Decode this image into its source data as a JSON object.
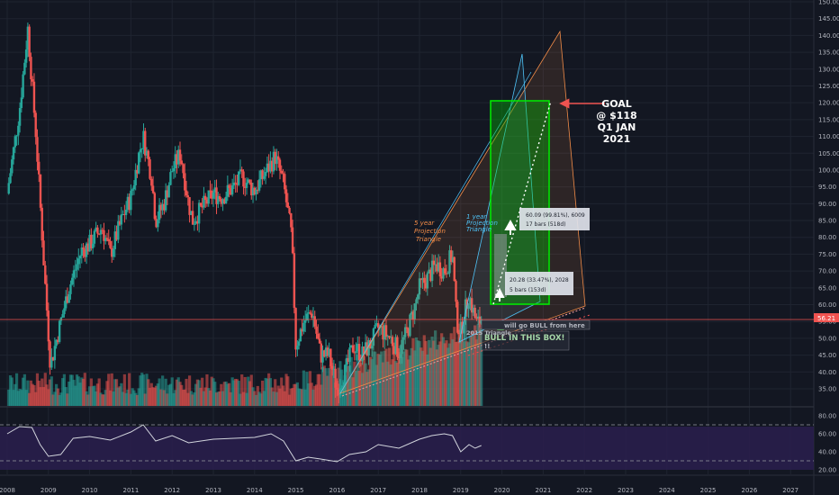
{
  "chart_data": {
    "type": "candlestick",
    "x_axis": {
      "ticks": [
        "2008",
        "2009",
        "2010",
        "2011",
        "2012",
        "2013",
        "2014",
        "2015",
        "2016",
        "2017",
        "2018",
        "2019",
        "2020",
        "2021",
        "2022",
        "2023",
        "2024",
        "2025",
        "2026",
        "2027"
      ]
    },
    "price_axis": {
      "range": [
        30,
        150
      ],
      "ticks": [
        35,
        40,
        45,
        50,
        55,
        60,
        65,
        70,
        75,
        80,
        85,
        90,
        95,
        100,
        105,
        110,
        115,
        120,
        125,
        130,
        135,
        140,
        145,
        150
      ]
    },
    "current_price": "56.21",
    "rsi_axis": {
      "range": [
        20,
        80
      ],
      "ticks": [
        "80.00",
        "60.00",
        "40.00",
        "20.00"
      ],
      "bands": [
        30,
        70
      ]
    },
    "annotations": {
      "goal": [
        "GOAL",
        "@ $118",
        "Q1 JAN",
        "2021"
      ],
      "five_year": [
        "5 year",
        "Projection",
        "Triangle"
      ],
      "one_year": [
        "1 year",
        "Projection",
        "Triangle"
      ],
      "measure_big": [
        "60.09 (99.81%), 6009",
        "17 bars (518d)"
      ],
      "measure_small": [
        "20.28 (33.47%), 2028",
        "5 bars (153d)"
      ],
      "bull_from": "will go BULL from here",
      "bull_box": "BULL IN THIS BOX!",
      "triangle_2015": "2015 Triangle",
      "exclaim": "!!"
    },
    "colors": {
      "up": "#26a69a",
      "down": "#ef5350",
      "bg": "#131722",
      "box": "#00c800",
      "rsi_band": "#7e57c2",
      "five_year": "#f28c48",
      "one_year": "#4fc3f7"
    },
    "price_series": [
      {
        "t": 2008.0,
        "p": 93
      },
      {
        "t": 2008.3,
        "p": 118
      },
      {
        "t": 2008.5,
        "p": 142
      },
      {
        "t": 2008.7,
        "p": 110
      },
      {
        "t": 2008.9,
        "p": 70
      },
      {
        "t": 2009.05,
        "p": 42
      },
      {
        "t": 2009.2,
        "p": 50
      },
      {
        "t": 2009.5,
        "p": 65
      },
      {
        "t": 2009.8,
        "p": 76
      },
      {
        "t": 2010.0,
        "p": 78
      },
      {
        "t": 2010.3,
        "p": 83
      },
      {
        "t": 2010.5,
        "p": 75
      },
      {
        "t": 2010.8,
        "p": 86
      },
      {
        "t": 2011.0,
        "p": 92
      },
      {
        "t": 2011.2,
        "p": 105
      },
      {
        "t": 2011.3,
        "p": 110
      },
      {
        "t": 2011.5,
        "p": 98
      },
      {
        "t": 2011.6,
        "p": 85
      },
      {
        "t": 2011.8,
        "p": 90
      },
      {
        "t": 2012.0,
        "p": 100
      },
      {
        "t": 2012.2,
        "p": 105
      },
      {
        "t": 2012.4,
        "p": 90
      },
      {
        "t": 2012.5,
        "p": 85
      },
      {
        "t": 2012.8,
        "p": 90
      },
      {
        "t": 2013.0,
        "p": 93
      },
      {
        "t": 2013.2,
        "p": 92
      },
      {
        "t": 2013.5,
        "p": 95
      },
      {
        "t": 2013.7,
        "p": 98
      },
      {
        "t": 2013.9,
        "p": 95
      },
      {
        "t": 2014.0,
        "p": 94
      },
      {
        "t": 2014.3,
        "p": 100
      },
      {
        "t": 2014.5,
        "p": 104
      },
      {
        "t": 2014.7,
        "p": 96
      },
      {
        "t": 2014.9,
        "p": 80
      },
      {
        "t": 2015.0,
        "p": 48
      },
      {
        "t": 2015.2,
        "p": 55
      },
      {
        "t": 2015.4,
        "p": 58
      },
      {
        "t": 2015.6,
        "p": 45
      },
      {
        "t": 2015.8,
        "p": 45
      },
      {
        "t": 2016.0,
        "p": 35
      },
      {
        "t": 2016.2,
        "p": 40
      },
      {
        "t": 2016.4,
        "p": 48
      },
      {
        "t": 2016.6,
        "p": 45
      },
      {
        "t": 2016.8,
        "p": 48
      },
      {
        "t": 2017.0,
        "p": 53
      },
      {
        "t": 2017.3,
        "p": 50
      },
      {
        "t": 2017.5,
        "p": 46
      },
      {
        "t": 2017.7,
        "p": 52
      },
      {
        "t": 2017.9,
        "p": 60
      },
      {
        "t": 2018.0,
        "p": 65
      },
      {
        "t": 2018.2,
        "p": 68
      },
      {
        "t": 2018.4,
        "p": 72
      },
      {
        "t": 2018.6,
        "p": 70
      },
      {
        "t": 2018.8,
        "p": 75
      },
      {
        "t": 2018.9,
        "p": 55
      },
      {
        "t": 2019.0,
        "p": 52
      },
      {
        "t": 2019.1,
        "p": 58
      },
      {
        "t": 2019.2,
        "p": 63
      },
      {
        "t": 2019.3,
        "p": 58
      },
      {
        "t": 2019.4,
        "p": 54
      },
      {
        "t": 2019.5,
        "p": 56
      }
    ],
    "rsi_series": [
      {
        "t": 2008.0,
        "v": 60
      },
      {
        "t": 2008.3,
        "v": 68
      },
      {
        "t": 2008.6,
        "v": 67
      },
      {
        "t": 2008.8,
        "v": 48
      },
      {
        "t": 2009.0,
        "v": 35
      },
      {
        "t": 2009.3,
        "v": 37
      },
      {
        "t": 2009.6,
        "v": 55
      },
      {
        "t": 2010.0,
        "v": 57
      },
      {
        "t": 2010.5,
        "v": 53
      },
      {
        "t": 2011.0,
        "v": 62
      },
      {
        "t": 2011.3,
        "v": 70
      },
      {
        "t": 2011.6,
        "v": 52
      },
      {
        "t": 2012.0,
        "v": 58
      },
      {
        "t": 2012.4,
        "v": 50
      },
      {
        "t": 2013.0,
        "v": 54
      },
      {
        "t": 2013.5,
        "v": 55
      },
      {
        "t": 2014.0,
        "v": 56
      },
      {
        "t": 2014.4,
        "v": 60
      },
      {
        "t": 2014.7,
        "v": 52
      },
      {
        "t": 2015.0,
        "v": 30
      },
      {
        "t": 2015.3,
        "v": 34
      },
      {
        "t": 2015.6,
        "v": 32
      },
      {
        "t": 2016.0,
        "v": 29
      },
      {
        "t": 2016.3,
        "v": 37
      },
      {
        "t": 2016.7,
        "v": 40
      },
      {
        "t": 2017.0,
        "v": 48
      },
      {
        "t": 2017.5,
        "v": 44
      },
      {
        "t": 2018.0,
        "v": 54
      },
      {
        "t": 2018.3,
        "v": 58
      },
      {
        "t": 2018.6,
        "v": 60
      },
      {
        "t": 2018.8,
        "v": 58
      },
      {
        "t": 2019.0,
        "v": 40
      },
      {
        "t": 2019.2,
        "v": 48
      },
      {
        "t": 2019.35,
        "v": 44
      },
      {
        "t": 2019.5,
        "v": 47
      }
    ]
  }
}
